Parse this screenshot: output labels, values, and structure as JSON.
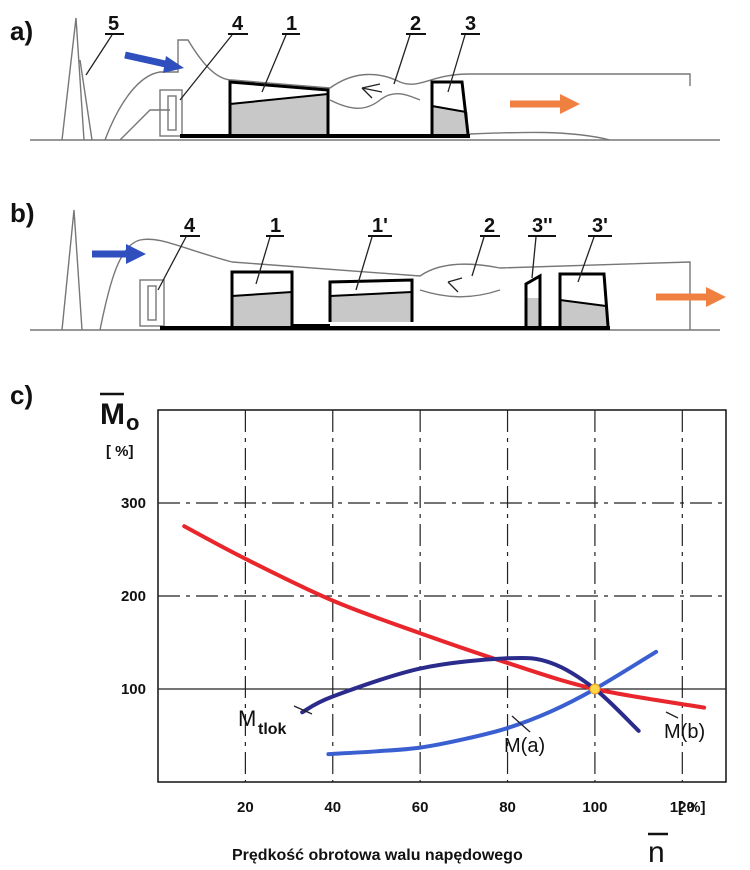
{
  "colors": {
    "mo": "#e8262b",
    "mtlok": "#2b2b8c",
    "ma": "#3a5fd0",
    "intake_arrow": "#2f4fbf",
    "exhaust_arrow": "#f08040",
    "point": "#ffd54a"
  },
  "panel_a": {
    "tag": "a)",
    "labels": [
      "5",
      "4",
      "1",
      "2",
      "3"
    ]
  },
  "panel_b": {
    "tag": "b)",
    "labels": [
      "4",
      "1",
      "1'",
      "2",
      "3''",
      "3'"
    ]
  },
  "panel_c": {
    "tag": "c)",
    "y_title": "M",
    "y_title_sub": "o",
    "y_unit": "[ %]",
    "x_unit": "[ %]",
    "x_title": "Prędkość obrotowa walu napędowego",
    "x_symbol": "n"
  },
  "chart_data": {
    "type": "line",
    "xlim": [
      0,
      130
    ],
    "ylim": [
      0,
      400
    ],
    "x_ticks": [
      "20",
      "40",
      "60",
      "80",
      "100",
      "120"
    ],
    "y_ticks": [
      "100",
      "200",
      "300"
    ],
    "grid": true,
    "series": [
      {
        "name": "Mo",
        "label": "",
        "x": [
          6,
          20,
          40,
          60,
          80,
          100,
          125
        ],
        "y": [
          275,
          240,
          195,
          160,
          128,
          100,
          80
        ]
      },
      {
        "name": "Mtlok",
        "label_main": "M",
        "label_sub": "tlok",
        "x": [
          33,
          40,
          60,
          80,
          90,
          100,
          110
        ],
        "y": [
          75,
          92,
          122,
          133,
          128,
          100,
          55
        ]
      },
      {
        "name": "M(a)",
        "label": "M(a)",
        "x": [
          39,
          50,
          60,
          70,
          80,
          90,
          100,
          114
        ],
        "y": [
          30,
          33,
          37,
          46,
          58,
          76,
          100,
          140
        ]
      },
      {
        "name": "M(b)",
        "label": "M(b)",
        "x": [],
        "y": []
      }
    ],
    "marker": {
      "x": 100,
      "y": 100
    }
  }
}
